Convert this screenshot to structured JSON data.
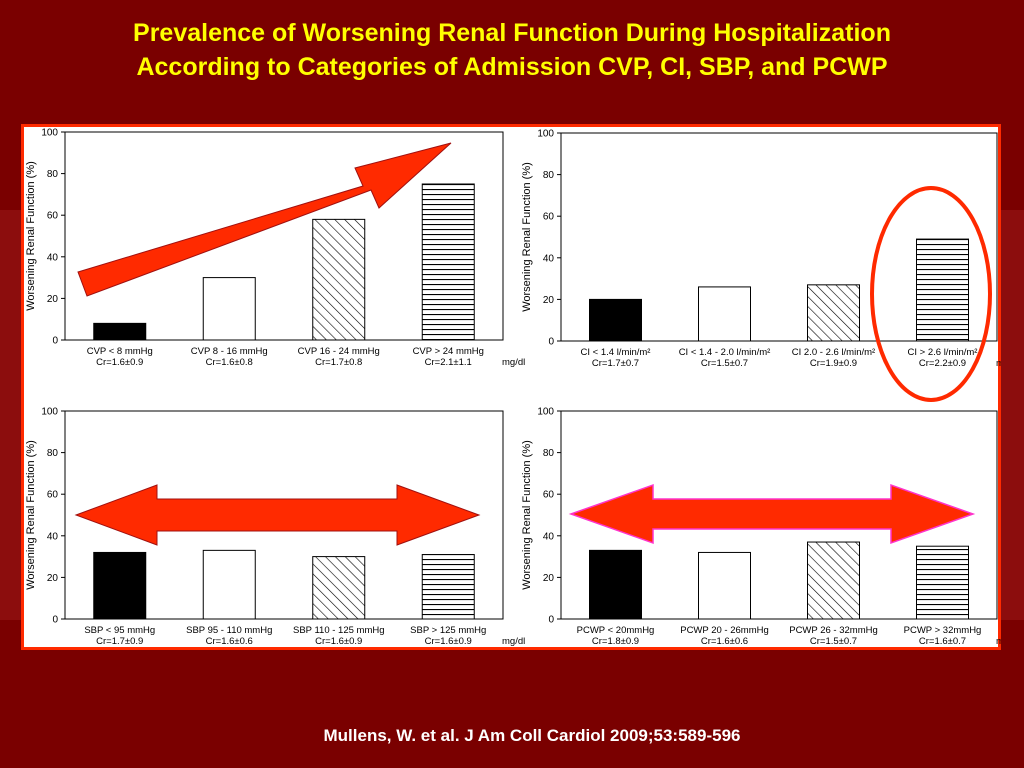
{
  "title": {
    "line1": "Prevalence of Worsening Renal Function During Hospitalization",
    "line2": "According to Categories of Admission CVP, CI, SBP, and PCWP"
  },
  "citation": "Mullens, W. et al. J Am Coll Cardiol 2009;53:589-596",
  "colors": {
    "background": "#7a0000",
    "title": "#ffff00",
    "accent": "#ff2a00",
    "arrow_outline": "#ff33cc"
  },
  "chart_data": [
    {
      "id": "cvp",
      "type": "bar",
      "ylabel": "Worsening Renal Function (%)",
      "ylim": [
        0,
        100
      ],
      "yticks": [
        0,
        20,
        40,
        60,
        80,
        100
      ],
      "categories": [
        "CVP < 8 mmHg",
        "CVP 8 - 16 mmHg",
        "CVP 16 - 24 mmHg",
        "CVP > 24 mmHg"
      ],
      "sublabels": [
        "Cr=1.6±0.9",
        "Cr=1.6±0.8",
        "Cr=1.7±0.8",
        "Cr=2.1±1.1"
      ],
      "values": [
        8,
        30,
        58,
        75
      ],
      "fills": [
        "solid",
        "empty",
        "diagonal",
        "horizontal"
      ],
      "unit": "mg/dl",
      "annotation": "increasing-arrow"
    },
    {
      "id": "ci",
      "type": "bar",
      "ylabel": "Worsening Renal Function (%)",
      "ylim": [
        0,
        100
      ],
      "yticks": [
        0,
        20,
        40,
        60,
        80,
        100
      ],
      "categories": [
        "CI < 1.4 l/min/m²",
        "CI < 1.4 - 2.0 l/min/m²",
        "CI 2.0 - 2.6 l/min/m²",
        "CI > 2.6 l/min/m²"
      ],
      "sublabels": [
        "Cr=1.7±0.7",
        "Cr=1.5±0.7",
        "Cr=1.9±0.9",
        "Cr=2.2±0.9"
      ],
      "values": [
        20,
        26,
        27,
        49
      ],
      "fills": [
        "solid",
        "empty",
        "diagonal",
        "horizontal"
      ],
      "unit": "mg/dl",
      "annotation": "circle-highlight-last"
    },
    {
      "id": "sbp",
      "type": "bar",
      "ylabel": "Worsening Renal Function (%)",
      "ylim": [
        0,
        100
      ],
      "yticks": [
        0,
        20,
        40,
        60,
        80,
        100
      ],
      "categories": [
        "SBP < 95 mmHg",
        "SBP 95 - 110 mmHg",
        "SBP 110 - 125 mmHg",
        "SBP > 125 mmHg"
      ],
      "sublabels": [
        "Cr=1.7±0.9",
        "Cr=1.6±0.6",
        "Cr=1.6±0.9",
        "Cr=1.6±0.9"
      ],
      "values": [
        32,
        33,
        30,
        31
      ],
      "fills": [
        "solid",
        "empty",
        "diagonal",
        "horizontal"
      ],
      "unit": "mg/dl",
      "annotation": "double-arrow"
    },
    {
      "id": "pcwp",
      "type": "bar",
      "ylabel": "Worsening Renal Function (%)",
      "ylim": [
        0,
        100
      ],
      "yticks": [
        0,
        20,
        40,
        60,
        80,
        100
      ],
      "categories": [
        "PCWP < 20mmHg",
        "PCWP 20 - 26mmHg",
        "PCWP 26 - 32mmHg",
        "PCWP > 32mmHg"
      ],
      "sublabels": [
        "Cr=1.8±0.9",
        "Cr=1.6±0.6",
        "Cr=1.5±0.7",
        "Cr=1.6±0.7"
      ],
      "values": [
        33,
        32,
        37,
        35
      ],
      "fills": [
        "solid",
        "empty",
        "diagonal",
        "horizontal"
      ],
      "unit": "mg/dl",
      "annotation": "double-arrow-outlined"
    }
  ]
}
